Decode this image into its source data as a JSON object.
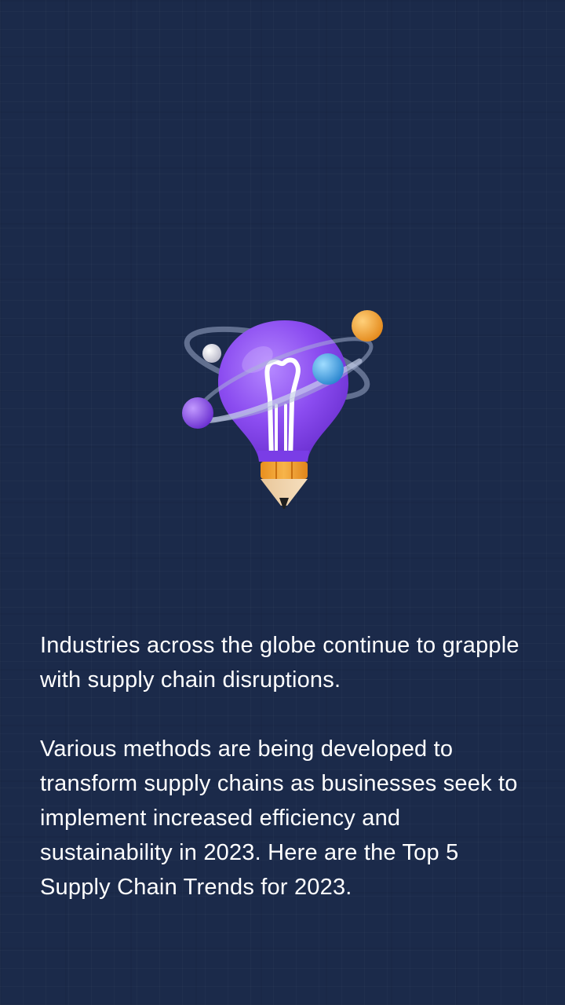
{
  "slide": {
    "illustration_icon": "lightbulb-pencil-atom-icon",
    "paragraph_1": "Industries across the globe continue to grapple with supply chain disruptions.",
    "paragraph_2": "Various methods are being developed to transform supply chains as businesses seek to implement increased efficiency and sustainability in 2023. Here are the Top 5 Supply Chain Trends for 2023."
  },
  "colors": {
    "background": "#1b2a4a",
    "text": "#ffffff",
    "bulb": "#8b4cf0",
    "orbit_ball_orange": "#f3a93a",
    "orbit_ball_blue": "#3fa8e6",
    "orbit_ball_purple": "#8a45e0",
    "pencil_wood": "#f0a43a",
    "pencil_tip": "#1e1e1e"
  }
}
